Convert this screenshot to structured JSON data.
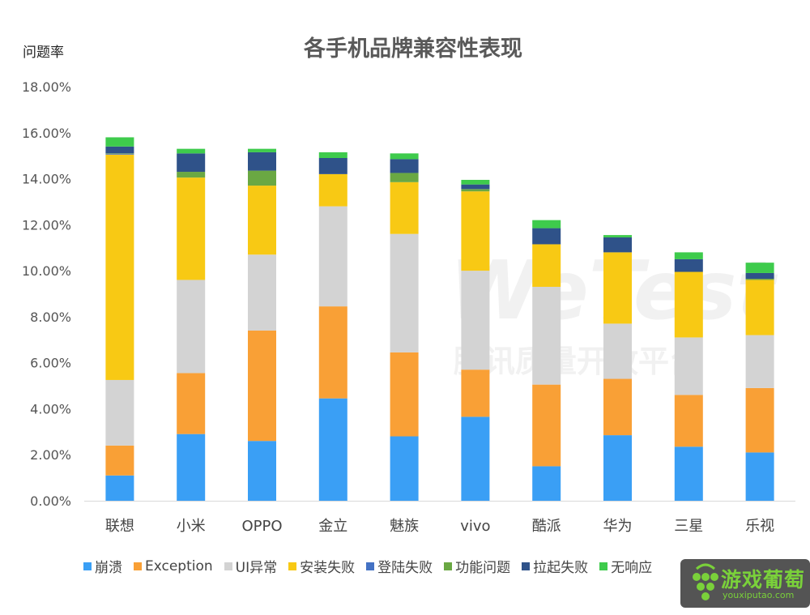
{
  "chart_data": {
    "type": "bar",
    "stacked": true,
    "title": "各手机品牌兼容性表现",
    "ylabel": "问题率",
    "xlabel": "",
    "ylim": [
      0,
      18
    ],
    "yticks": [
      "0.00%",
      "2.00%",
      "4.00%",
      "6.00%",
      "8.00%",
      "10.00%",
      "12.00%",
      "14.00%",
      "16.00%",
      "18.00%"
    ],
    "grid": false,
    "legend_position": "bottom",
    "categories": [
      "联想",
      "小米",
      "OPPO",
      "金立",
      "魅族",
      "vivo",
      "酷派",
      "华为",
      "三星",
      "乐视"
    ],
    "series": [
      {
        "name": "崩溃",
        "color": "#3a9ff5",
        "values": [
          1.1,
          2.9,
          2.6,
          4.45,
          2.8,
          3.65,
          1.5,
          2.85,
          2.35,
          2.1
        ]
      },
      {
        "name": "Exception",
        "color": "#f9a036",
        "values": [
          1.3,
          2.65,
          4.8,
          4.0,
          3.65,
          2.05,
          3.55,
          2.45,
          2.25,
          2.8
        ]
      },
      {
        "name": "UI异常",
        "color": "#d3d3d3",
        "values": [
          2.85,
          4.05,
          3.3,
          4.35,
          5.15,
          4.3,
          4.25,
          2.4,
          2.5,
          2.3
        ]
      },
      {
        "name": "安装失败",
        "color": "#f8c914",
        "values": [
          9.8,
          4.45,
          3.0,
          1.4,
          2.25,
          3.45,
          1.85,
          3.1,
          2.85,
          2.4
        ]
      },
      {
        "name": "登陆失败",
        "color": "#4472c4",
        "values": [
          0.03,
          0,
          0,
          0,
          0,
          0,
          0,
          0,
          0,
          0
        ]
      },
      {
        "name": "功能问题",
        "color": "#6aa843",
        "values": [
          0.02,
          0.25,
          0.65,
          0,
          0.4,
          0.1,
          0,
          0,
          0,
          0.05
        ]
      },
      {
        "name": "拉起失败",
        "color": "#2f5289",
        "values": [
          0.3,
          0.8,
          0.8,
          0.7,
          0.6,
          0.2,
          0.7,
          0.65,
          0.55,
          0.25
        ]
      },
      {
        "name": "无响应",
        "color": "#3ecb4c",
        "values": [
          0.4,
          0.2,
          0.15,
          0.25,
          0.25,
          0.2,
          0.35,
          0.1,
          0.3,
          0.45
        ]
      }
    ]
  },
  "watermark": {
    "brand": "WeTest",
    "subtitle": "腾讯质量开放平台"
  },
  "logo": {
    "name": "游戏葡萄",
    "url": "youxiputao.com"
  }
}
